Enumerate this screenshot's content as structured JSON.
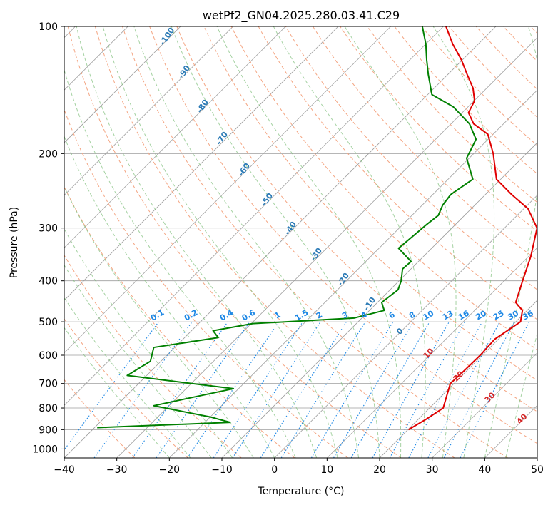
{
  "chart_data": {
    "type": "line",
    "title": "wetPf2_GN04.2025.280.03.41.C29",
    "xlabel": "Temperature (°C)",
    "ylabel": "Pressure (hPa)",
    "xlim": [
      -40,
      50
    ],
    "ylim": [
      1050,
      100
    ],
    "y_scale": "log",
    "x_ticks": [
      "−40",
      "−30",
      "−20",
      "−10",
      "0",
      "10",
      "20",
      "30",
      "40",
      "50"
    ],
    "y_ticks": [
      "100",
      "200",
      "300",
      "400",
      "500",
      "600",
      "700",
      "800",
      "900",
      "1000"
    ],
    "grid": true,
    "skew": 45,
    "series": [
      {
        "color": "#e00000",
        "points": [
          [
            20.1,
            900
          ],
          [
            21.5,
            850
          ],
          [
            22.6,
            800
          ],
          [
            21.0,
            750
          ],
          [
            19.3,
            700
          ],
          [
            19.5,
            650
          ],
          [
            19.6,
            600
          ],
          [
            19.3,
            550
          ],
          [
            20.9,
            500
          ],
          [
            19.1,
            470
          ],
          [
            16.3,
            450
          ],
          [
            13.5,
            400
          ],
          [
            10.4,
            350
          ],
          [
            6.2,
            300
          ],
          [
            0.8,
            270
          ],
          [
            -5.0,
            250
          ],
          [
            -10.8,
            230
          ],
          [
            -16.3,
            200
          ],
          [
            -21.0,
            180
          ],
          [
            -25.7,
            170
          ],
          [
            -28.8,
            160
          ],
          [
            -29.9,
            150
          ],
          [
            -32.6,
            140
          ],
          [
            -36.3,
            130
          ],
          [
            -40.2,
            120
          ],
          [
            -44.9,
            110
          ],
          [
            -49.5,
            100
          ]
        ]
      },
      {
        "color": "#008000",
        "points": [
          [
            -39.5,
            890
          ],
          [
            -15.2,
            865
          ],
          [
            -20.0,
            840
          ],
          [
            -32.9,
            790
          ],
          [
            -28.0,
            760
          ],
          [
            -21.0,
            720
          ],
          [
            -43.7,
            670
          ],
          [
            -42.0,
            620
          ],
          [
            -44.0,
            575
          ],
          [
            -33.6,
            545
          ],
          [
            -35.9,
            525
          ],
          [
            -29.7,
            505
          ],
          [
            -11.5,
            490
          ],
          [
            -7.2,
            470
          ],
          [
            -9.2,
            450
          ],
          [
            -8.5,
            420
          ],
          [
            -9.6,
            400
          ],
          [
            -11.6,
            375
          ],
          [
            -11.4,
            360
          ],
          [
            -16.3,
            335
          ],
          [
            -15.8,
            310
          ],
          [
            -15.5,
            295
          ],
          [
            -15.0,
            280
          ],
          [
            -16.1,
            265
          ],
          [
            -16.6,
            250
          ],
          [
            -15.3,
            230
          ],
          [
            -20.5,
            205
          ],
          [
            -22.3,
            185
          ],
          [
            -26.5,
            170
          ],
          [
            -32.8,
            155
          ],
          [
            -39.2,
            145
          ],
          [
            -43.7,
            130
          ],
          [
            -46.8,
            120
          ],
          [
            -50.0,
            110
          ],
          [
            -54.0,
            100
          ]
        ]
      }
    ],
    "annotations": {
      "dry_adiabats": [
        "-100",
        "-90",
        "-80",
        "-70",
        "-60",
        "-50",
        "-40",
        "-30",
        "-20",
        "-10"
      ],
      "moist_adiabats": [
        "0",
        "10",
        "20",
        "30",
        "40"
      ],
      "mixing_ratios": [
        "0.1",
        "0.2",
        "0.4",
        "0.6",
        "1",
        "1.5",
        "2",
        "3",
        "4",
        "6",
        "8",
        "10",
        "13",
        "16",
        "20",
        "25",
        "30",
        "36"
      ]
    }
  },
  "colors": {
    "temperature": "#e00000",
    "dewpoint": "#008000",
    "dry_adiabat": "#f4a582",
    "moist_adiabat": "#7fbf7b",
    "mixing_ratio": "#1e88e5",
    "grid": "#9e9e9e"
  }
}
